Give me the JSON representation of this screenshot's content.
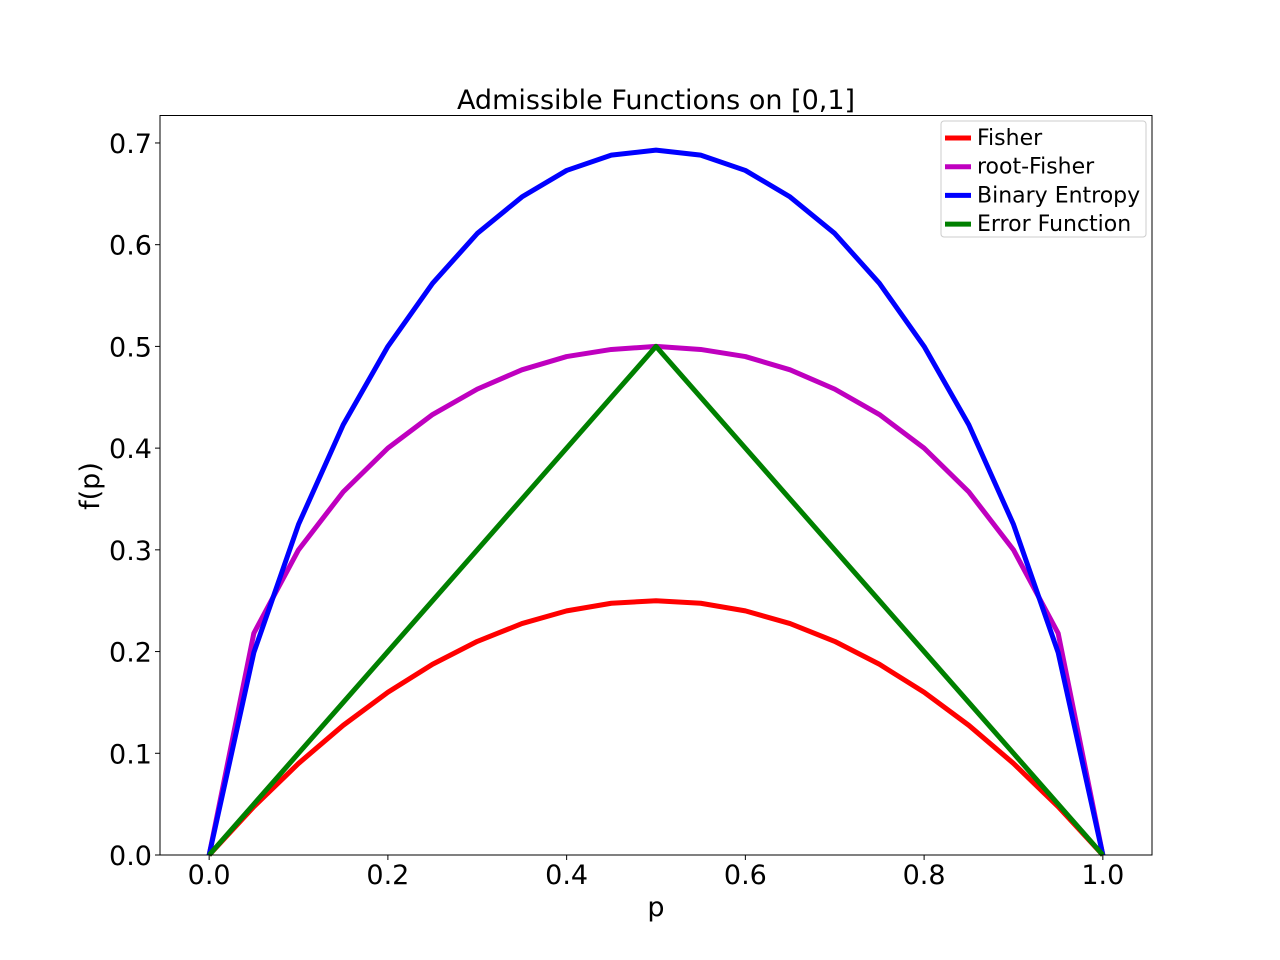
{
  "chart_data": {
    "type": "line",
    "title": "Admissible Functions on [0,1]",
    "xlabel": "p",
    "ylabel": "f(p)",
    "xlim": [
      -0.055,
      1.055
    ],
    "ylim": [
      0.0,
      0.727
    ],
    "xticks": [
      0.0,
      0.2,
      0.4,
      0.6,
      0.8,
      1.0
    ],
    "xtick_labels": [
      "0.0",
      "0.2",
      "0.4",
      "0.6",
      "0.8",
      "1.0"
    ],
    "yticks": [
      0.0,
      0.1,
      0.2,
      0.3,
      0.4,
      0.5,
      0.6,
      0.7
    ],
    "ytick_labels": [
      "0.0",
      "0.1",
      "0.2",
      "0.3",
      "0.4",
      "0.5",
      "0.6",
      "0.7"
    ],
    "grid": false,
    "legend_position": "top-right",
    "x": [
      0.0,
      0.05,
      0.1,
      0.15,
      0.2,
      0.25,
      0.3,
      0.35,
      0.4,
      0.45,
      0.5,
      0.55,
      0.6,
      0.65,
      0.7,
      0.75,
      0.8,
      0.85,
      0.9,
      0.95,
      1.0
    ],
    "series": [
      {
        "name": "Fisher",
        "color": "#ff0000",
        "values": [
          0.0,
          0.0475,
          0.09,
          0.1275,
          0.16,
          0.1875,
          0.21,
          0.2275,
          0.24,
          0.2475,
          0.25,
          0.2475,
          0.24,
          0.2275,
          0.21,
          0.1875,
          0.16,
          0.1275,
          0.09,
          0.0475,
          0.0
        ]
      },
      {
        "name": "root-Fisher",
        "color": "#bf00bf",
        "values": [
          0.0,
          0.218,
          0.3,
          0.357,
          0.4,
          0.433,
          0.458,
          0.477,
          0.49,
          0.497,
          0.5,
          0.497,
          0.49,
          0.477,
          0.458,
          0.433,
          0.4,
          0.357,
          0.3,
          0.218,
          0.0
        ]
      },
      {
        "name": "Binary Entropy",
        "color": "#0000ff",
        "values": [
          0.0,
          0.199,
          0.325,
          0.423,
          0.5,
          0.562,
          0.611,
          0.647,
          0.673,
          0.688,
          0.693,
          0.688,
          0.673,
          0.647,
          0.611,
          0.562,
          0.5,
          0.423,
          0.325,
          0.199,
          0.0
        ]
      },
      {
        "name": "Error Function",
        "color": "#008000",
        "values": [
          0.0,
          0.05,
          0.1,
          0.15,
          0.2,
          0.25,
          0.3,
          0.35,
          0.4,
          0.45,
          0.5,
          0.45,
          0.4,
          0.35,
          0.3,
          0.25,
          0.2,
          0.15,
          0.1,
          0.05,
          0.0
        ]
      }
    ]
  }
}
